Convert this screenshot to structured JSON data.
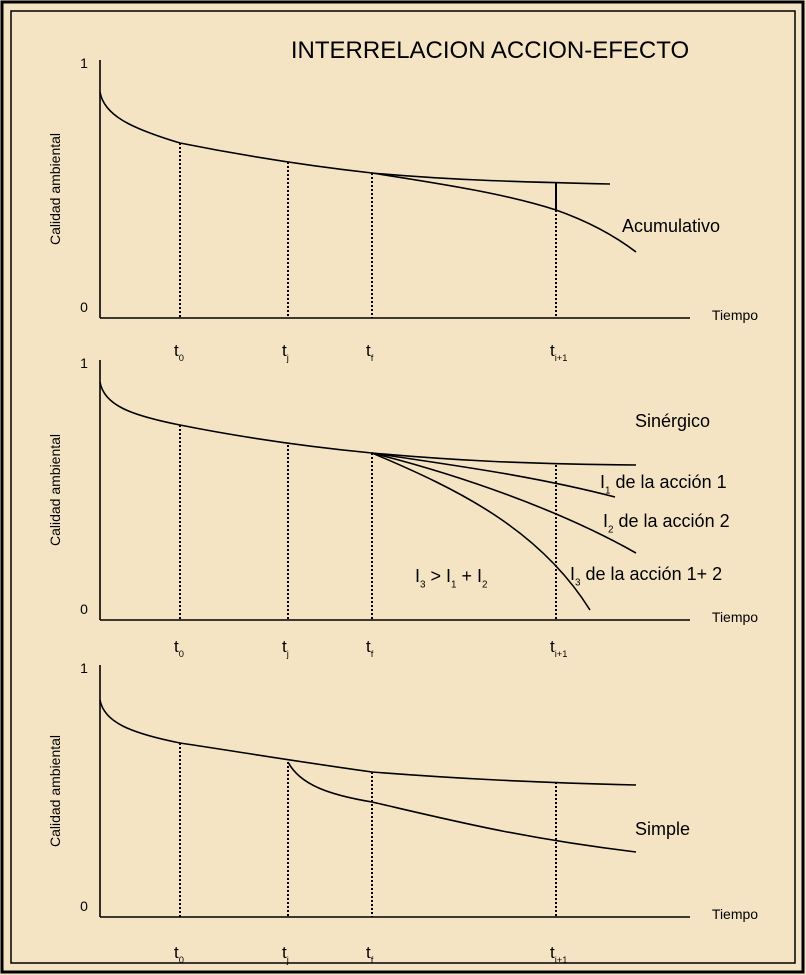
{
  "title": "INTERRELACION ACCION-EFECTO",
  "panels": [
    {
      "y_label": "Calidad ambiental",
      "y_max": "1",
      "y_min": "0",
      "x_label": "Tiempo",
      "ticks": [
        [
          {
            "text": "t"
          },
          {
            "sub": "0"
          }
        ],
        [
          {
            "text": "t"
          },
          {
            "sub": "j"
          }
        ],
        [
          {
            "text": "t"
          },
          {
            "sub": "f"
          }
        ],
        [
          {
            "text": "t"
          },
          {
            "sub": "i+1"
          }
        ]
      ],
      "annotations": [
        [
          {
            "text": "Acumulativo"
          }
        ]
      ]
    },
    {
      "y_label": "Calidad ambiental",
      "y_max": "1",
      "y_min": "0",
      "x_label": "Tiempo",
      "ticks": [
        [
          {
            "text": "t"
          },
          {
            "sub": "0"
          }
        ],
        [
          {
            "text": "t"
          },
          {
            "sub": "j"
          }
        ],
        [
          {
            "text": "t"
          },
          {
            "sub": "f"
          }
        ],
        [
          {
            "text": "t"
          },
          {
            "sub": "i+1"
          }
        ]
      ],
      "annotations": [
        [
          {
            "text": "Sinérgico"
          }
        ],
        [
          {
            "text": "I"
          },
          {
            "sub": "1"
          },
          {
            "text": " de la acción 1"
          }
        ],
        [
          {
            "text": "I"
          },
          {
            "sub": "2"
          },
          {
            "text": " de la acción 2"
          }
        ],
        [
          {
            "text": "I"
          },
          {
            "sub": "3"
          },
          {
            "text": " de la acción 1+ 2"
          }
        ],
        [
          {
            "text": "I"
          },
          {
            "sub": "3"
          },
          {
            "text": " > I"
          },
          {
            "sub": "1"
          },
          {
            "text": " + I"
          },
          {
            "sub": "2"
          }
        ]
      ]
    },
    {
      "y_label": "Calidad ambiental",
      "y_max": "1",
      "y_min": "0",
      "x_label": "Tiempo",
      "ticks": [
        [
          {
            "text": "t"
          },
          {
            "sub": "0"
          }
        ],
        [
          {
            "text": "t"
          },
          {
            "sub": "j"
          }
        ],
        [
          {
            "text": "t"
          },
          {
            "sub": "f"
          }
        ],
        [
          {
            "text": "t"
          },
          {
            "sub": "i+1"
          }
        ]
      ],
      "annotations": [
        [
          {
            "text": "Simple"
          }
        ]
      ]
    }
  ]
}
